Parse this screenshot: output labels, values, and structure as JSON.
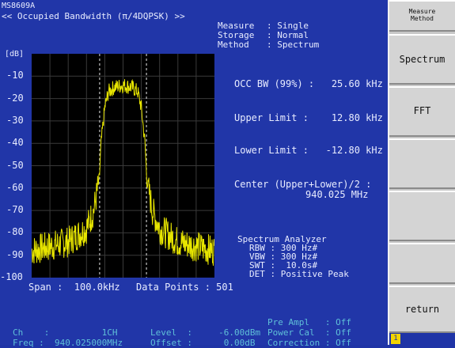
{
  "model": "MS8609A",
  "title": "<< Occupied Bandwidth (π/4DQPSK) >>",
  "measure": {
    "label": "Measure",
    "value": ": Single"
  },
  "storage": {
    "label": "Storage",
    "value": ": Normal"
  },
  "method": {
    "label": "Method",
    "value": ": Spectrum"
  },
  "y_unit": "[dB]",
  "y_ticks": [
    "-10",
    "-20",
    "-30",
    "-40",
    "-50",
    "-60",
    "-70",
    "-80",
    "-90",
    "-100"
  ],
  "results": {
    "occ_bw": "OCC BW (99%) :   25.60 kHz",
    "upper": "Upper Limit :    12.80 kHz",
    "lower": "Lower Limit :   -12.80 kHz",
    "center_label": "Center (Upper+Lower)/2 :",
    "center_value": "940.025 MHz"
  },
  "analyzer": {
    "title": "Spectrum Analyzer",
    "rbw": "RBW : 300 Hz#",
    "vbw": "VBW : 300 Hz#",
    "swt": "SWT :  10.0s#",
    "det": "DET : Positive Peak"
  },
  "span": "Span :  100.0kHz",
  "data_points": "Data Points : 501",
  "status": {
    "pre_ampl": "Pre Ampl   : Off",
    "power_cal": "Power Cal  : Off",
    "correction": "Correction : Off",
    "ch": "Ch    :          1CH",
    "level": "Level  :     -6.00dBm",
    "freq": "Freq :  940.025000MHz",
    "offset": "Offset :      0.00dB"
  },
  "softkeys": {
    "header": "Measure\nMethod",
    "spectrum": "Spectrum",
    "fft": "FFT",
    "return": "return",
    "indicator": "1"
  },
  "chart_data": {
    "type": "line",
    "ylim": [
      -100,
      0
    ],
    "xlim": [
      -50,
      50
    ],
    "x_unit": "kHz",
    "marker_lines_khz": [
      -12.8,
      12.8
    ],
    "series": [
      {
        "x": [
          -50,
          -40,
          -30,
          -20,
          -16,
          -13,
          -12,
          -10,
          -8,
          -5,
          0,
          5,
          8,
          10,
          12,
          13,
          16,
          20,
          30,
          40,
          50
        ],
        "values": [
          -88,
          -86,
          -84,
          -78,
          -70,
          -56,
          -40,
          -24,
          -17,
          -15,
          -14,
          -15,
          -17,
          -24,
          -40,
          -56,
          -70,
          -78,
          -84,
          -86,
          -88
        ]
      }
    ],
    "color": "#e8e600",
    "grid": true
  }
}
